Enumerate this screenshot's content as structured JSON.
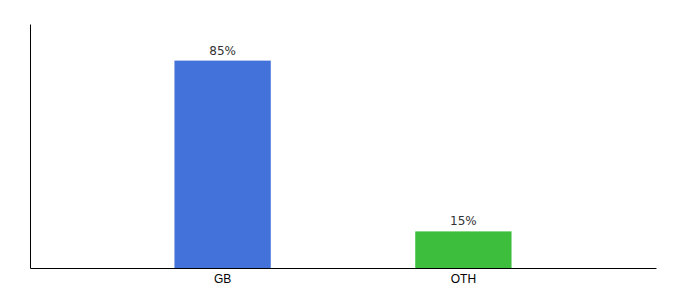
{
  "chart_data": {
    "type": "bar",
    "categories": [
      "GB",
      "OTH"
    ],
    "values": [
      85,
      15
    ],
    "value_labels": [
      "85%",
      "15%"
    ],
    "colors": [
      "#4472db",
      "#3dbf3d"
    ],
    "ylim": [
      0,
      100
    ],
    "grid": false,
    "data_labels": true,
    "tick_labels": "x"
  }
}
